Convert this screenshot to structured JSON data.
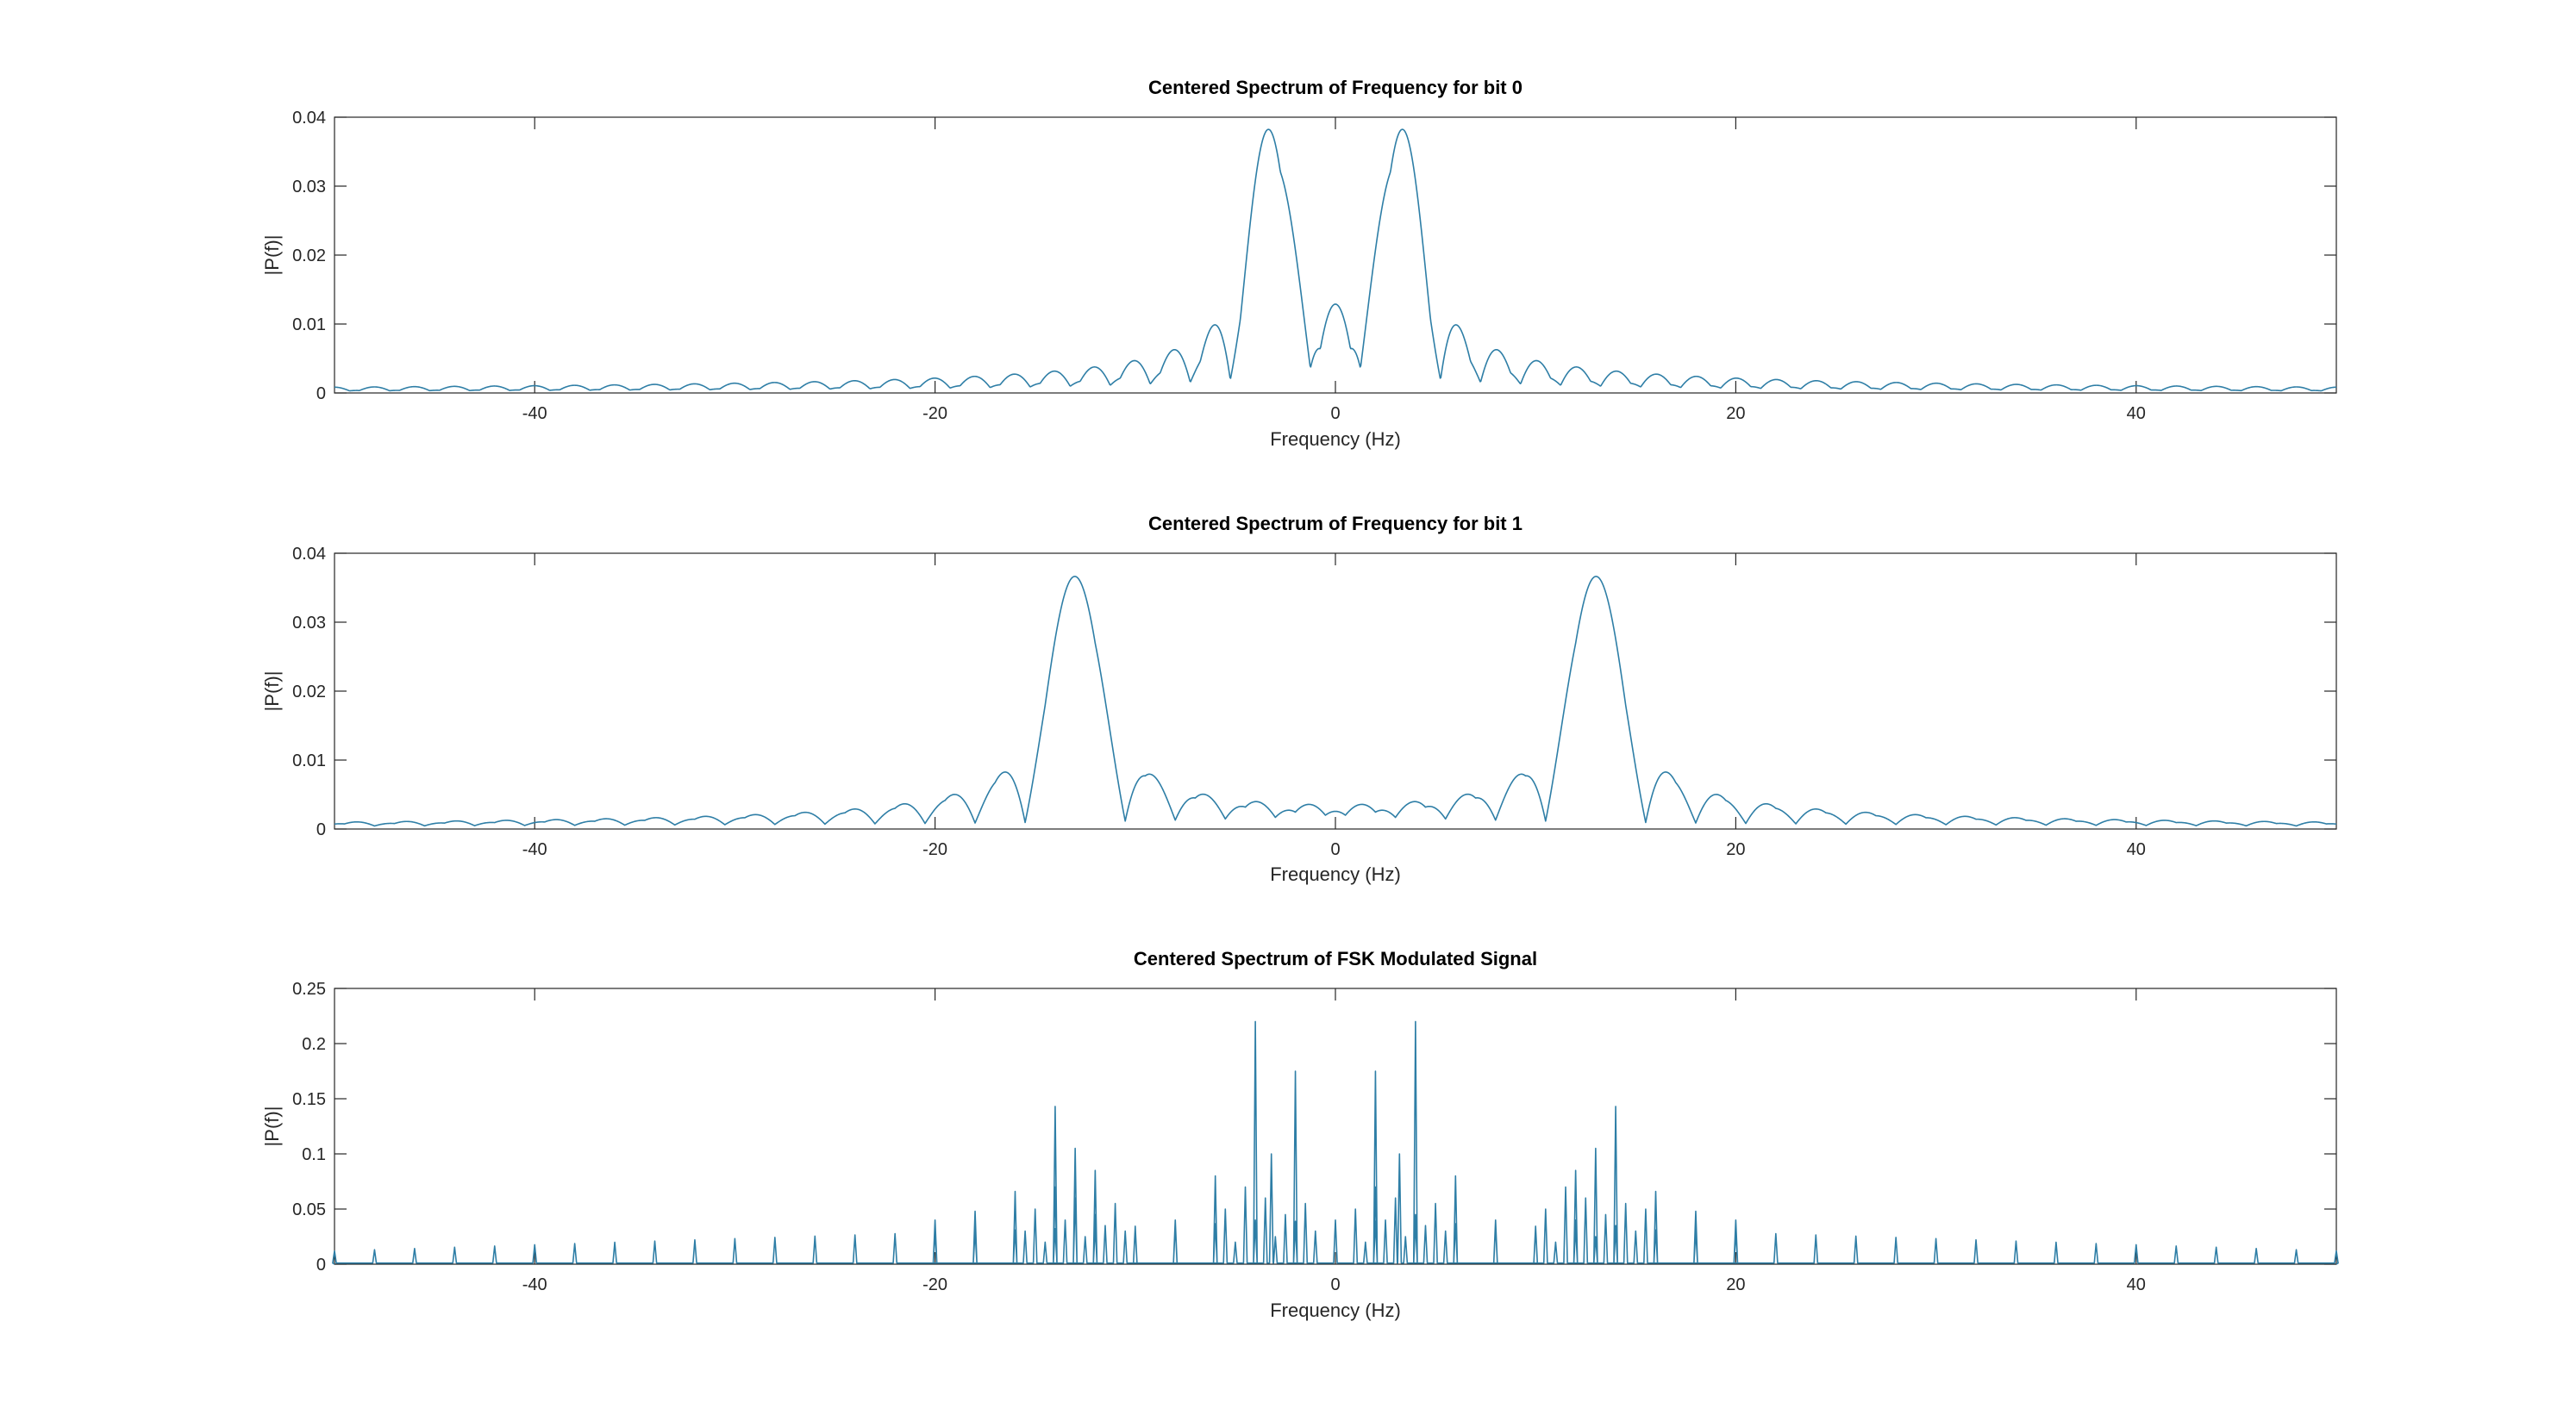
{
  "chart_data": [
    {
      "type": "line",
      "title": "Centered Spectrum of Frequency for bit 0",
      "xlabel": "Frequency (Hz)",
      "ylabel": "|P(f)|",
      "xlim": [
        -50,
        50
      ],
      "ylim": [
        0,
        0.04
      ],
      "xticks": [
        -40,
        -20,
        0,
        20,
        40
      ],
      "xtick_labels": [
        "-40",
        "-20",
        "0",
        "20",
        "40"
      ],
      "yticks": [
        0,
        0.01,
        0.02,
        0.03,
        0.04
      ],
      "ytick_labels": [
        "0",
        "0.01",
        "0.02",
        "0.03",
        "0.04"
      ],
      "grid": false,
      "line_color": "#2e7ea6",
      "spectrum": {
        "kind": "sinc_pair",
        "carriers_hz": [
          -3.25,
          3.25
        ],
        "peak": 0.0356,
        "null_spacing_hz": 2
      }
    },
    {
      "type": "line",
      "title": "Centered Spectrum of Frequency for bit 1",
      "xlabel": "Frequency (Hz)",
      "ylabel": "|P(f)|",
      "xlim": [
        -50,
        50
      ],
      "ylim": [
        0,
        0.04
      ],
      "xticks": [
        -40,
        -20,
        0,
        20,
        40
      ],
      "xtick_labels": [
        "-40",
        "-20",
        "0",
        "20",
        "40"
      ],
      "yticks": [
        0,
        0.01,
        0.02,
        0.03,
        0.04
      ],
      "ytick_labels": [
        "0",
        "0.01",
        "0.02",
        "0.03",
        "0.04"
      ],
      "grid": false,
      "line_color": "#2e7ea6",
      "spectrum": {
        "kind": "sinc_pair",
        "carriers_hz": [
          -13,
          13
        ],
        "peak": 0.0356,
        "null_spacing_hz": 2.5
      }
    },
    {
      "type": "line",
      "title": "Centered Spectrum of FSK Modulated Signal",
      "xlabel": "Frequency (Hz)",
      "ylabel": "|P(f)|",
      "xlim": [
        -50,
        50
      ],
      "ylim": [
        0,
        0.25
      ],
      "xticks": [
        -40,
        -20,
        0,
        20,
        40
      ],
      "xtick_labels": [
        "-40",
        "-20",
        "0",
        "20",
        "40"
      ],
      "yticks": [
        0,
        0.05,
        0.1,
        0.15,
        0.2,
        0.25
      ],
      "ytick_labels": [
        "0",
        "0.05",
        "0.1",
        "0.15",
        "0.2",
        "0.25"
      ],
      "grid": false,
      "line_color": "#2e7ea6",
      "spectrum": {
        "kind": "line_spectrum",
        "baseline_spikes": {
          "start_hz": -50,
          "spacing_hz": 2,
          "height_near_edge": 0.012,
          "height_near_center": 0.04
        },
        "major_peaks": [
          {
            "f": -4,
            "y": 0.22
          },
          {
            "f": 4,
            "y": 0.22
          },
          {
            "f": -2,
            "y": 0.175
          },
          {
            "f": 2,
            "y": 0.175
          },
          {
            "f": -14,
            "y": 0.143
          },
          {
            "f": 14,
            "y": 0.143
          },
          {
            "f": -13,
            "y": 0.105
          },
          {
            "f": 13,
            "y": 0.105
          },
          {
            "f": -12,
            "y": 0.085
          },
          {
            "f": 12,
            "y": 0.085
          },
          {
            "f": -3.2,
            "y": 0.1
          },
          {
            "f": 3.2,
            "y": 0.1
          },
          {
            "f": -16,
            "y": 0.066
          },
          {
            "f": 16,
            "y": 0.066
          },
          {
            "f": -6,
            "y": 0.08
          },
          {
            "f": 6,
            "y": 0.08
          },
          {
            "f": -18,
            "y": 0.048
          },
          {
            "f": 18,
            "y": 0.048
          },
          {
            "f": -8,
            "y": 0.04
          },
          {
            "f": 8,
            "y": 0.04
          },
          {
            "f": -10,
            "y": 0.032
          },
          {
            "f": 10,
            "y": 0.032
          },
          {
            "f": -20,
            "y": 0.04
          },
          {
            "f": 20,
            "y": 0.04
          }
        ]
      }
    }
  ]
}
